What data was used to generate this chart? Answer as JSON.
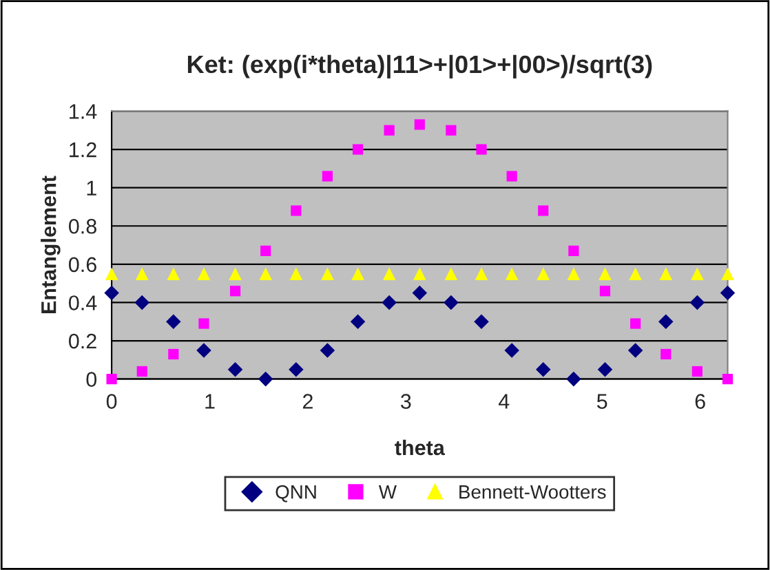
{
  "chart_data": {
    "type": "scatter",
    "title": "Ket: (exp(i*theta)|11>+|01>+|00>)/sqrt(3)",
    "xlabel": "theta",
    "ylabel": "Entanglement",
    "x": [
      0,
      0.31,
      0.63,
      0.94,
      1.26,
      1.57,
      1.88,
      2.2,
      2.51,
      2.83,
      3.14,
      3.46,
      3.77,
      4.08,
      4.4,
      4.71,
      5.03,
      5.34,
      5.65,
      5.97,
      6.28
    ],
    "series": [
      {
        "name": "QNN",
        "color": "#000080",
        "marker": "diamond",
        "values": [
          0.45,
          0.4,
          0.3,
          0.15,
          0.05,
          0,
          0.05,
          0.15,
          0.3,
          0.4,
          0.45,
          0.4,
          0.3,
          0.15,
          0.05,
          0,
          0.05,
          0.15,
          0.3,
          0.4,
          0.45
        ]
      },
      {
        "name": "W",
        "color": "#ff00ff",
        "marker": "square",
        "values": [
          0,
          0.04,
          0.13,
          0.29,
          0.46,
          0.67,
          0.88,
          1.06,
          1.2,
          1.3,
          1.33,
          1.3,
          1.2,
          1.06,
          0.88,
          0.67,
          0.46,
          0.29,
          0.13,
          0.04,
          0
        ]
      },
      {
        "name": "Bennett-Wootters",
        "color": "#ffff00",
        "marker": "triangle",
        "values": [
          0.55,
          0.55,
          0.55,
          0.55,
          0.55,
          0.55,
          0.55,
          0.55,
          0.55,
          0.55,
          0.55,
          0.55,
          0.55,
          0.55,
          0.55,
          0.55,
          0.55,
          0.55,
          0.55,
          0.55,
          0.55
        ]
      }
    ],
    "xlim": [
      0,
      6.28
    ],
    "xticks": [
      0,
      1,
      2,
      3,
      4,
      5,
      6
    ],
    "ylim": [
      0,
      1.4
    ],
    "yticks": [
      0,
      0.2,
      0.4,
      0.6,
      0.8,
      1,
      1.2,
      1.4
    ],
    "grid": "y",
    "legend": "bottom"
  }
}
